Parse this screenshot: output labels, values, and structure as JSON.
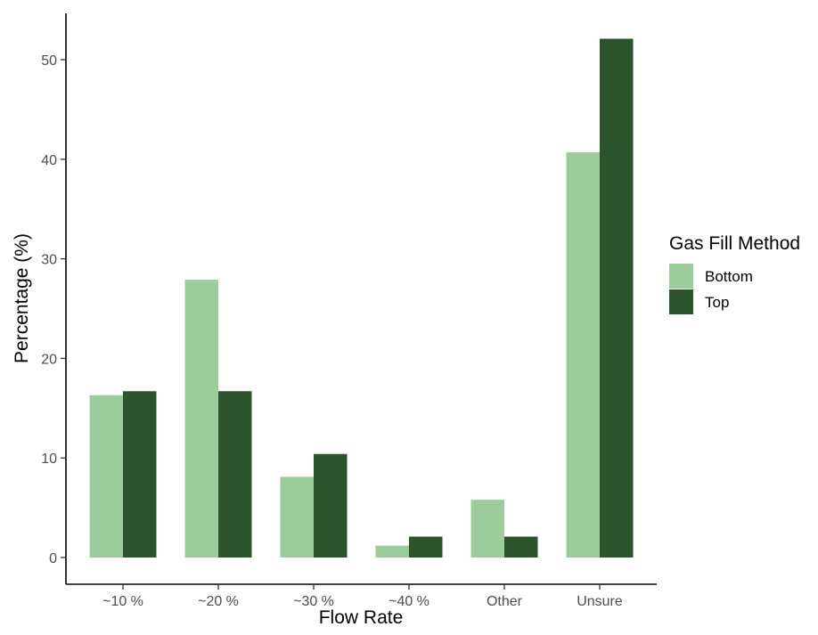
{
  "chart_data": {
    "type": "bar",
    "categories": [
      "~10 %",
      "~20 %",
      "~30 %",
      "~40 %",
      "Other",
      "Unsure"
    ],
    "series": [
      {
        "name": "Bottom",
        "values": [
          16.3,
          27.9,
          8.1,
          1.2,
          5.8,
          40.7
        ],
        "color": "#9ccc9b"
      },
      {
        "name": "Top",
        "values": [
          16.7,
          16.7,
          10.4,
          2.1,
          2.1,
          52.1
        ],
        "color": "#2b542b"
      }
    ],
    "xlabel": "Flow Rate",
    "ylabel": "Percentage (%)",
    "ylim": [
      0,
      54.5
    ],
    "yticks": [
      0,
      10,
      20,
      30,
      40,
      50
    ],
    "grid": false,
    "legend": {
      "title": "Gas Fill Method",
      "placement": "right"
    }
  }
}
